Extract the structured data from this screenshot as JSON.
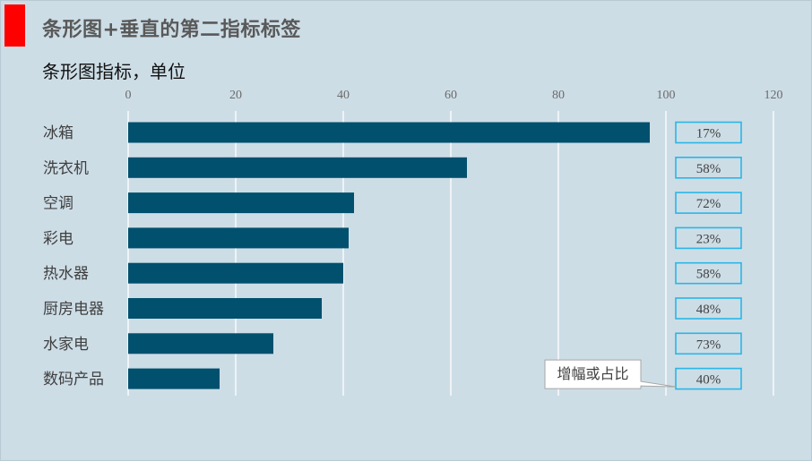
{
  "header": {
    "accent_color": "#ff0000",
    "title": "条形图+垂直的第二指标标签",
    "subtitle": "条形图指标，单位"
  },
  "chart_data": {
    "type": "bar",
    "orientation": "horizontal",
    "categories": [
      "冰箱",
      "洗衣机",
      "空调",
      "彩电",
      "热水器",
      "厨房电器",
      "水家电",
      "数码产品"
    ],
    "values": [
      97,
      63,
      42,
      41,
      40,
      36,
      27,
      17
    ],
    "secondary_labels": [
      "17%",
      "58%",
      "72%",
      "23%",
      "58%",
      "48%",
      "73%",
      "40%"
    ],
    "xlim": [
      0,
      120
    ],
    "x_ticks": [
      0,
      20,
      40,
      60,
      80,
      100,
      120
    ],
    "grid": true,
    "bar_color": "#00506e",
    "label_box_color": "#29b6e6",
    "callout": "增幅或占比"
  }
}
